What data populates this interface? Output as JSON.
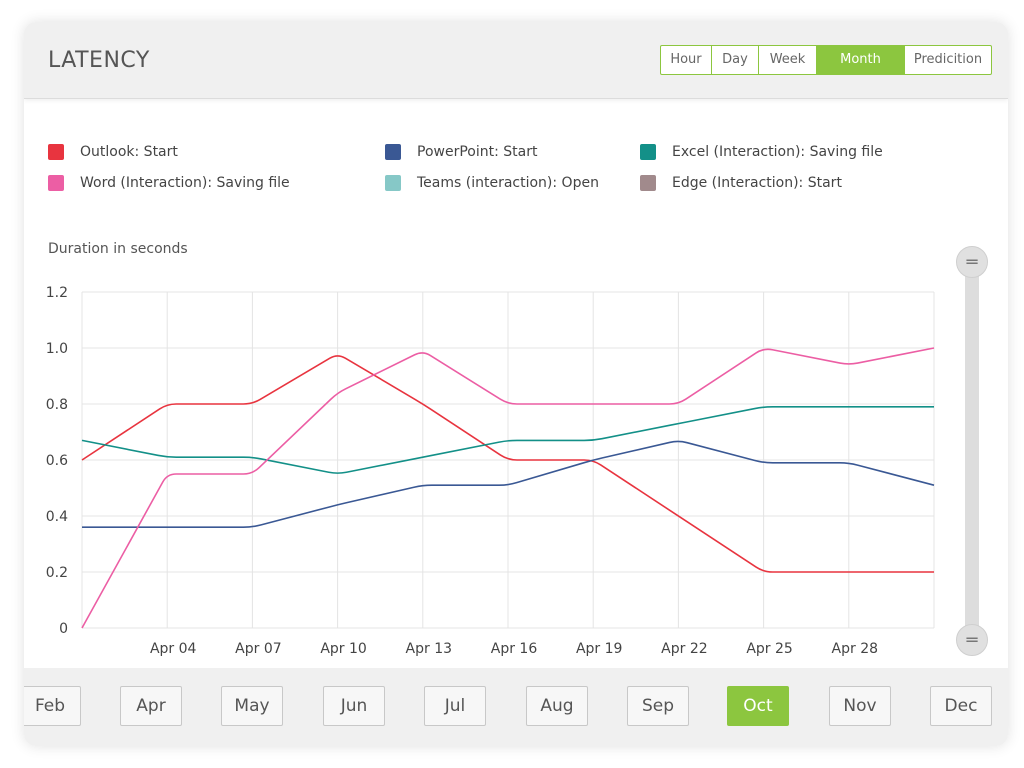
{
  "header": {
    "title": "LATENCY",
    "ranges": [
      {
        "label": "Hour",
        "active": false
      },
      {
        "label": "Day",
        "active": false
      },
      {
        "label": "Week",
        "active": false
      },
      {
        "label": "Month",
        "active": true
      },
      {
        "label": "Predicition",
        "active": false
      }
    ]
  },
  "legend": [
    {
      "label": "Outlook: Start",
      "color": "#e8343f"
    },
    {
      "label": "PowerPoint: Start",
      "color": "#3a5894"
    },
    {
      "label": "Excel (Interaction): Saving file",
      "color": "#139088"
    },
    {
      "label": "Word (Interaction): Saving file",
      "color": "#ec5ea4"
    },
    {
      "label": "Teams (interaction): Open",
      "color": "#86c8c7"
    },
    {
      "label": "Edge (Interaction): Start",
      "color": "#a18a8c"
    }
  ],
  "months": [
    {
      "label": "Feb",
      "active": false
    },
    {
      "label": "Apr",
      "active": false
    },
    {
      "label": "May",
      "active": false
    },
    {
      "label": "Jun",
      "active": false
    },
    {
      "label": "Jul",
      "active": false
    },
    {
      "label": "Aug",
      "active": false
    },
    {
      "label": "Sep",
      "active": false
    },
    {
      "label": "Oct",
      "active": true
    },
    {
      "label": "Nov",
      "active": false
    },
    {
      "label": "Dec",
      "active": false
    }
  ],
  "scroll_handle_icon": "drag-handle-icon",
  "chart_data": {
    "type": "line",
    "ylabel": "Duration in seconds",
    "ylim": [
      0,
      1.2
    ],
    "yticks": [
      "0",
      "0.2",
      "0.4",
      "0.6",
      "0.8",
      "1.0",
      "1.2"
    ],
    "x_labels": [
      "Apr 04",
      "Apr 07",
      "Apr 10",
      "Apr 13",
      "Apr 16",
      "Apr 19",
      "Apr 22",
      "Apr 25",
      "Apr 28"
    ],
    "x": [
      "Apr 01",
      "Apr 04",
      "Apr 07",
      "Apr 10",
      "Apr 13",
      "Apr 16",
      "Apr 19",
      "Apr 22",
      "Apr 25",
      "Apr 28",
      "May 01"
    ],
    "grid": true,
    "series": [
      {
        "name": "Outlook: Start",
        "color": "#e8343f",
        "values": [
          0.6,
          0.8,
          0.8,
          0.98,
          0.8,
          0.6,
          0.6,
          0.4,
          0.2,
          0.2,
          0.2
        ]
      },
      {
        "name": "PowerPoint: Start",
        "color": "#3a5894",
        "values": [
          0.36,
          0.36,
          0.36,
          0.44,
          0.51,
          0.51,
          0.6,
          0.67,
          0.59,
          0.59,
          0.51
        ]
      },
      {
        "name": "Excel (Interaction): Saving file",
        "color": "#139088",
        "values": [
          0.67,
          0.61,
          0.61,
          0.55,
          0.61,
          0.67,
          0.67,
          0.73,
          0.79,
          0.79,
          0.79
        ]
      },
      {
        "name": "Word (Interaction): Saving file",
        "color": "#ec5ea4",
        "values": [
          0.0,
          0.55,
          0.55,
          0.84,
          0.99,
          0.8,
          0.8,
          0.8,
          1.0,
          0.94,
          1.0
        ]
      }
    ]
  }
}
